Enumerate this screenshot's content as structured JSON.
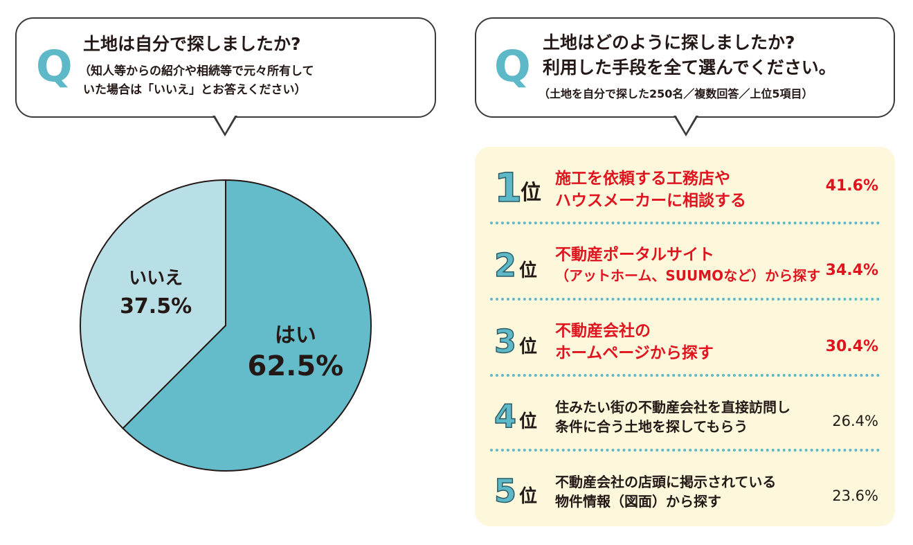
{
  "colors": {
    "accent": "#5db8c8",
    "accent_light": "#b9dfe6",
    "highlight_red": "#e0141e",
    "panel_bg": "#fdf8dc",
    "text": "#231815"
  },
  "question_left": {
    "q_icon": "Q",
    "title": "土地は自分で探しましたか?",
    "note_line1": "（知人等からの紹介や相続等で元々所有して",
    "note_line2": "いた場合は「いいえ」とお答えください）"
  },
  "question_right": {
    "q_icon": "Q",
    "title_line1": "土地はどのように探しましたか?",
    "title_line2": "利用した手段を全て選んでください。",
    "note": "（土地を自分で探した250名／複数回答／上位5項目）"
  },
  "chart_data": [
    {
      "type": "pie",
      "slices": [
        {
          "label": "はい",
          "value": 62.5,
          "value_label": "62.5%",
          "color": "#64bccb"
        },
        {
          "label": "いいえ",
          "value": 37.5,
          "value_label": "37.5%",
          "color": "#b9dfe6"
        }
      ]
    },
    {
      "type": "table",
      "rows": [
        {
          "rank": "1",
          "suffix": "位",
          "line1": "施工を依頼する工務店や",
          "line2": "ハウスメーカーに相談する",
          "value": 41.6,
          "value_label": "41.6%",
          "highlight": true
        },
        {
          "rank": "2",
          "suffix": "位",
          "line1": "不動産ポータルサイト",
          "line2": "（アットホーム、SUUMOなど）から探す",
          "value": 34.4,
          "value_label": "34.4%",
          "highlight": true
        },
        {
          "rank": "3",
          "suffix": "位",
          "line1": "不動産会社の",
          "line2": "ホームページから探す",
          "value": 30.4,
          "value_label": "30.4%",
          "highlight": true
        },
        {
          "rank": "4",
          "suffix": "位",
          "line1": "住みたい街の不動産会社を直接訪問し",
          "line2": "条件に合う土地を探してもらう",
          "value": 26.4,
          "value_label": "26.4%",
          "highlight": false
        },
        {
          "rank": "5",
          "suffix": "位",
          "line1": "不動産会社の店頭に掲示されている",
          "line2": "物件情報（図面）から探す",
          "value": 23.6,
          "value_label": "23.6%",
          "highlight": false
        }
      ]
    }
  ]
}
